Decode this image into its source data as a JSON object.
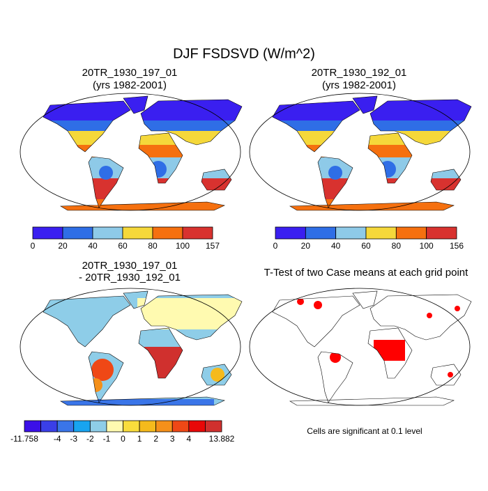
{
  "title": "DJF FSDSVD (W/m^2)",
  "panels": [
    {
      "title": "20TR_1930_197_01",
      "subtitle": "(yrs 1982-2001)",
      "colorbar": {
        "colors": [
          "#3a1ff0",
          "#2f6ee6",
          "#8ecae8",
          "#f5d83a",
          "#f5700f",
          "#d8322f"
        ],
        "ticks": [
          "0",
          "20",
          "40",
          "60",
          "80",
          "100",
          "157"
        ]
      }
    },
    {
      "title": "20TR_1930_192_01",
      "subtitle": "(yrs 1982-2001)",
      "colorbar": {
        "colors": [
          "#3a1ff0",
          "#2f6ee6",
          "#8ecae8",
          "#f5d83a",
          "#f5700f",
          "#d8322f"
        ],
        "ticks": [
          "0",
          "20",
          "40",
          "60",
          "80",
          "100",
          "156"
        ]
      }
    },
    {
      "title": "20TR_1930_197_01",
      "subtitle": "- 20TR_1930_192_01",
      "colorbar": {
        "colors": [
          "#3b10e8",
          "#3a3fe8",
          "#3a75e8",
          "#18a4f0",
          "#8ecde8",
          "#fffab0",
          "#f9dd3c",
          "#f5ba1c",
          "#f5901a",
          "#ef4816",
          "#e80808",
          "#d0302e"
        ],
        "ticks": [
          "-11.758",
          null,
          "-4",
          "-3",
          "-2",
          "-1",
          "0",
          "1",
          "2",
          "3",
          "4",
          null,
          "13.882"
        ]
      }
    },
    {
      "title": "T-Test of two Case means at each grid point",
      "footnote": "Cells are significant at 0.1 level"
    }
  ]
}
